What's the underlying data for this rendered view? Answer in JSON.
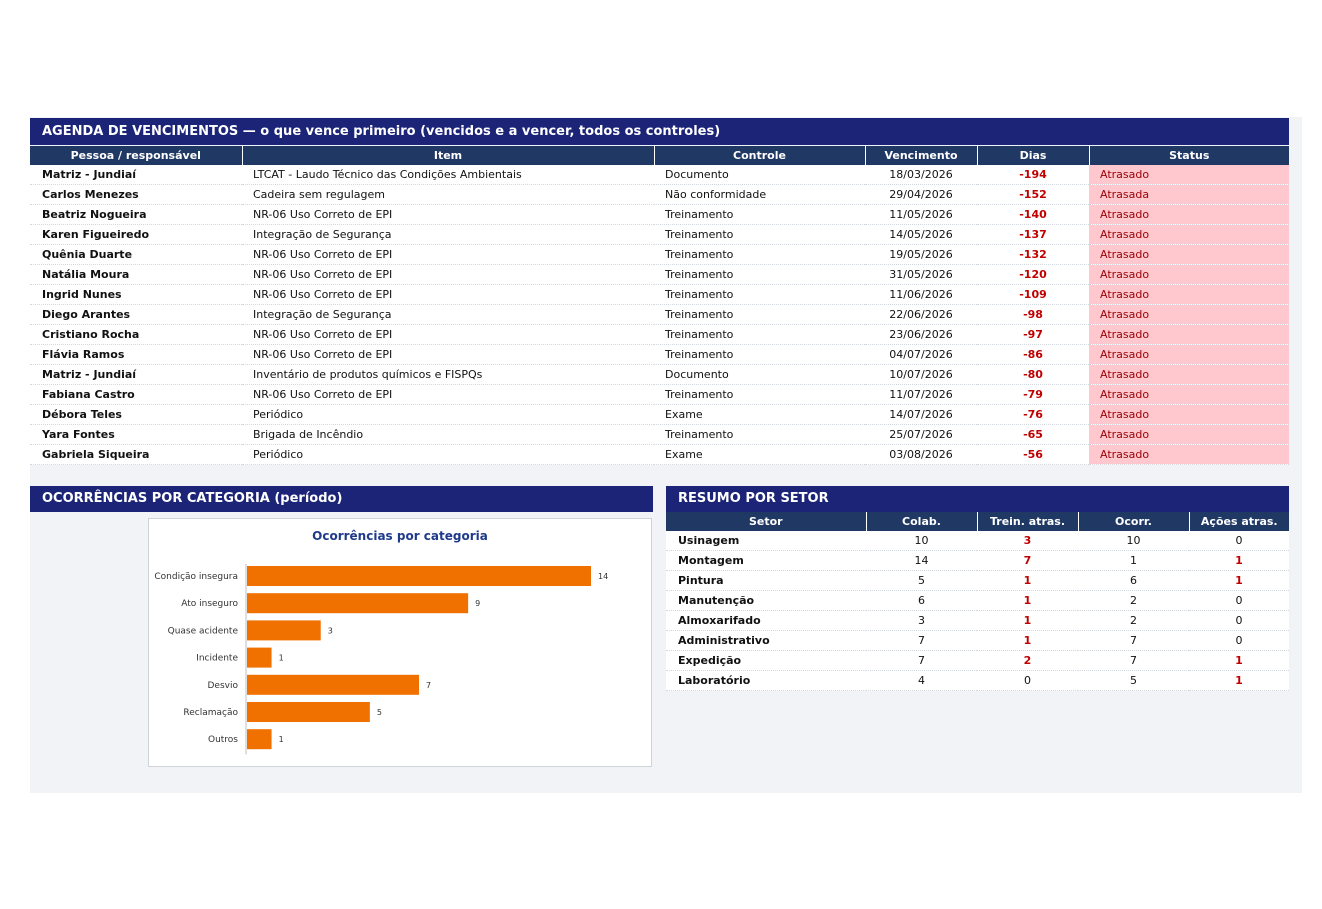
{
  "agenda": {
    "title": "AGENDA DE VENCIMENTOS — o que vence primeiro (vencidos e a vencer, todos os controles)",
    "columns": [
      "Pessoa / responsável",
      "Item",
      "Controle",
      "Vencimento",
      "Dias",
      "Status"
    ],
    "rows": [
      [
        "Matriz - Jundiaí",
        "LTCAT - Laudo Técnico das Condições Ambientais",
        "Documento",
        "18/03/2026",
        "-194",
        "Atrasado"
      ],
      [
        "Carlos Menezes",
        "Cadeira sem regulagem",
        "Não conformidade",
        "29/04/2026",
        "-152",
        "Atrasada"
      ],
      [
        "Beatriz Nogueira",
        "NR-06 Uso Correto de EPI",
        "Treinamento",
        "11/05/2026",
        "-140",
        "Atrasado"
      ],
      [
        "Karen Figueiredo",
        "Integração de Segurança",
        "Treinamento",
        "14/05/2026",
        "-137",
        "Atrasado"
      ],
      [
        "Quênia Duarte",
        "NR-06 Uso Correto de EPI",
        "Treinamento",
        "19/05/2026",
        "-132",
        "Atrasado"
      ],
      [
        "Natália Moura",
        "NR-06 Uso Correto de EPI",
        "Treinamento",
        "31/05/2026",
        "-120",
        "Atrasado"
      ],
      [
        "Ingrid Nunes",
        "NR-06 Uso Correto de EPI",
        "Treinamento",
        "11/06/2026",
        "-109",
        "Atrasado"
      ],
      [
        "Diego Arantes",
        "Integração de Segurança",
        "Treinamento",
        "22/06/2026",
        "-98",
        "Atrasado"
      ],
      [
        "Cristiano Rocha",
        "NR-06 Uso Correto de EPI",
        "Treinamento",
        "23/06/2026",
        "-97",
        "Atrasado"
      ],
      [
        "Flávia Ramos",
        "NR-06 Uso Correto de EPI",
        "Treinamento",
        "04/07/2026",
        "-86",
        "Atrasado"
      ],
      [
        "Matriz - Jundiaí",
        "Inventário de produtos químicos e FISPQs",
        "Documento",
        "10/07/2026",
        "-80",
        "Atrasado"
      ],
      [
        "Fabiana Castro",
        "NR-06 Uso Correto de EPI",
        "Treinamento",
        "11/07/2026",
        "-79",
        "Atrasado"
      ],
      [
        "Débora Teles",
        "Periódico",
        "Exame",
        "14/07/2026",
        "-76",
        "Atrasado"
      ],
      [
        "Yara Fontes",
        "Brigada de Incêndio",
        "Treinamento",
        "25/07/2026",
        "-65",
        "Atrasado"
      ],
      [
        "Gabriela Siqueira",
        "Periódico",
        "Exame",
        "03/08/2026",
        "-56",
        "Atrasado"
      ]
    ]
  },
  "ocorrencias": {
    "title": "OCORRÊNCIAS POR CATEGORIA (período)"
  },
  "chart_data": {
    "type": "bar",
    "orientation": "horizontal",
    "title": "Ocorrências por categoria",
    "categories": [
      "Condição insegura",
      "Ato inseguro",
      "Quase acidente",
      "Incidente",
      "Desvio",
      "Reclamação",
      "Outros"
    ],
    "values": [
      14,
      9,
      3,
      1,
      7,
      5,
      1
    ],
    "xlim": [
      0,
      14
    ],
    "data_labels": true,
    "grid": false,
    "bar_color": "#f07000"
  },
  "setor": {
    "title": "RESUMO POR SETOR",
    "columns": [
      "Setor",
      "Colab.",
      "Trein. atras.",
      "Ocorr.",
      "Ações atras."
    ],
    "rows": [
      [
        "Usinagem",
        "10",
        "3",
        "10",
        "0"
      ],
      [
        "Montagem",
        "14",
        "7",
        "1",
        "1"
      ],
      [
        "Pintura",
        "5",
        "1",
        "6",
        "1"
      ],
      [
        "Manutenção",
        "6",
        "1",
        "2",
        "0"
      ],
      [
        "Almoxarifado",
        "3",
        "1",
        "2",
        "0"
      ],
      [
        "Administrativo",
        "7",
        "1",
        "7",
        "0"
      ],
      [
        "Expedição",
        "7",
        "2",
        "7",
        "1"
      ],
      [
        "Laboratório",
        "4",
        "0",
        "5",
        "1"
      ]
    ]
  },
  "colors": {
    "band": "#1c2478",
    "header": "#1f3864",
    "late_fill": "#ffc7ce",
    "late_text": "#9c0006",
    "negative": "#c00000"
  }
}
